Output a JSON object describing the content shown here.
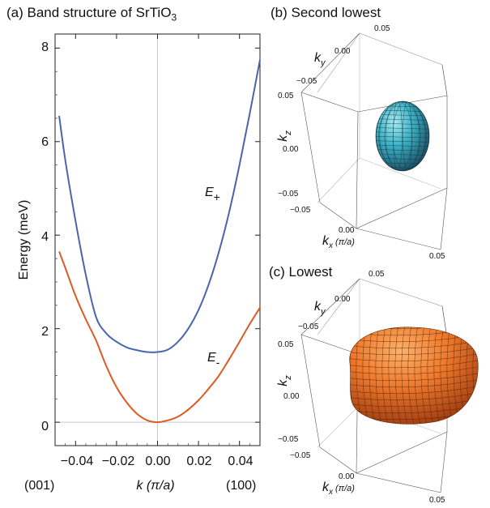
{
  "panels": {
    "a": {
      "title": "(a) Band structure of SrTiO",
      "title_sub": "3"
    },
    "b": {
      "title": "(b) Second lowest"
    },
    "c": {
      "title": "(c) Lowest"
    }
  },
  "band_plot": {
    "ylabel": "Energy (meV)",
    "xlabel": "k (π/a)",
    "x_direction_left": "(001)",
    "x_direction_right": "(100)",
    "label_plus_main": "E",
    "label_plus_sub": "+",
    "label_minus_main": "E",
    "label_minus_sub": "-",
    "x_tick_labels": [
      "−0.04",
      "−0.02",
      "0.00",
      "0.02",
      "0.04"
    ],
    "y_tick_labels": [
      "0",
      "2",
      "4",
      "6",
      "8"
    ]
  },
  "chart_data": {
    "type": "line",
    "title": "(a) Band structure of SrTiO3",
    "xlabel": "k (π/a)",
    "ylabel": "Energy (meV)",
    "xlim": [
      -0.05,
      0.05
    ],
    "ylim": [
      -0.5,
      8.3
    ],
    "x_ticks": [
      -0.04,
      -0.02,
      0.0,
      0.02,
      0.04
    ],
    "y_ticks": [
      0,
      2,
      4,
      6,
      8
    ],
    "series": [
      {
        "name": "E+",
        "color": "#4a64ad",
        "x": [
          -0.048,
          -0.045,
          -0.04,
          -0.035,
          -0.03,
          -0.025,
          -0.02,
          -0.015,
          -0.01,
          -0.005,
          0.0,
          0.005,
          0.01,
          0.015,
          0.02,
          0.025,
          0.03,
          0.035,
          0.04,
          0.045,
          0.05
        ],
        "y": [
          6.55,
          5.6,
          4.3,
          3.15,
          2.25,
          1.9,
          1.72,
          1.6,
          1.54,
          1.5,
          1.5,
          1.55,
          1.72,
          2.0,
          2.4,
          2.95,
          3.65,
          4.5,
          5.5,
          6.6,
          7.75
        ]
      },
      {
        "name": "E-",
        "color": "#de5a23",
        "x": [
          -0.048,
          -0.045,
          -0.04,
          -0.035,
          -0.03,
          -0.025,
          -0.02,
          -0.015,
          -0.01,
          -0.005,
          0.0,
          0.005,
          0.01,
          0.015,
          0.02,
          0.025,
          0.03,
          0.035,
          0.04,
          0.045,
          0.05
        ],
        "y": [
          3.65,
          3.3,
          2.7,
          2.2,
          1.75,
          1.2,
          0.75,
          0.42,
          0.18,
          0.04,
          0.0,
          0.04,
          0.12,
          0.27,
          0.47,
          0.72,
          1.0,
          1.35,
          1.72,
          2.1,
          2.45
        ]
      }
    ],
    "reference_lines": {
      "x": 0.0,
      "y": 0.0,
      "color": "#c8c8c8"
    },
    "grid": false
  },
  "box_plots": {
    "b": {
      "ky_label": "k",
      "ky_sub": "y",
      "kz_label": "k",
      "kz_sub": "z",
      "kx_label": "k",
      "kx_sub": "x",
      "kx_unit": " (π/a)",
      "ky_ticks": [
        "0.05",
        "0.00",
        "−0.05"
      ],
      "kz_ticks": [
        "0.05",
        "0.00",
        "−0.05"
      ],
      "kx_ticks": [
        "−0.05",
        "0.00",
        "0.05"
      ],
      "surface_color": "#3bb2c6"
    },
    "c": {
      "ky_label": "k",
      "ky_sub": "y",
      "kz_label": "k",
      "kz_sub": "z",
      "kx_label": "k",
      "kx_sub": "x",
      "kx_unit": " (π/a)",
      "ky_ticks": [
        "0.05",
        "0.00",
        "−0.05"
      ],
      "kz_ticks": [
        "0.05",
        "0.00",
        "−0.05"
      ],
      "kx_ticks": [
        "−0.05",
        "0.00",
        "0.05"
      ],
      "surface_color": "#ee7a2c"
    }
  }
}
